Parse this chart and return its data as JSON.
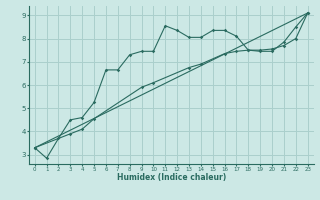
{
  "xlabel": "Humidex (Indice chaleur)",
  "bg_color": "#cce8e5",
  "grid_color": "#aacfcc",
  "line_color": "#2a6b60",
  "xlim": [
    -0.5,
    23.5
  ],
  "ylim": [
    2.6,
    9.4
  ],
  "yticks": [
    3,
    4,
    5,
    6,
    7,
    8,
    9
  ],
  "xticks": [
    0,
    1,
    2,
    3,
    4,
    5,
    6,
    7,
    8,
    9,
    10,
    11,
    12,
    13,
    14,
    15,
    16,
    17,
    18,
    19,
    20,
    21,
    22,
    23
  ],
  "series1_x": [
    0,
    1,
    2,
    3,
    4,
    5,
    6,
    7,
    8,
    9,
    10,
    11,
    12,
    13,
    14,
    15,
    16,
    17,
    18,
    19,
    20,
    21,
    22,
    23
  ],
  "series1_y": [
    3.3,
    2.85,
    3.7,
    4.5,
    4.6,
    5.25,
    6.65,
    6.65,
    7.3,
    7.45,
    7.45,
    8.55,
    8.35,
    8.05,
    8.05,
    8.35,
    8.35,
    8.1,
    7.5,
    7.45,
    7.45,
    7.85,
    8.5,
    9.1
  ],
  "series2_x": [
    0,
    23
  ],
  "series2_y": [
    3.3,
    9.1
  ],
  "series3_x": [
    0,
    3,
    4,
    5,
    9,
    10,
    13,
    14,
    16,
    17,
    18,
    19,
    20,
    21,
    22,
    23
  ],
  "series3_y": [
    3.3,
    3.9,
    4.1,
    4.55,
    5.9,
    6.1,
    6.75,
    6.9,
    7.35,
    7.45,
    7.5,
    7.5,
    7.55,
    7.7,
    8.0,
    9.1
  ]
}
